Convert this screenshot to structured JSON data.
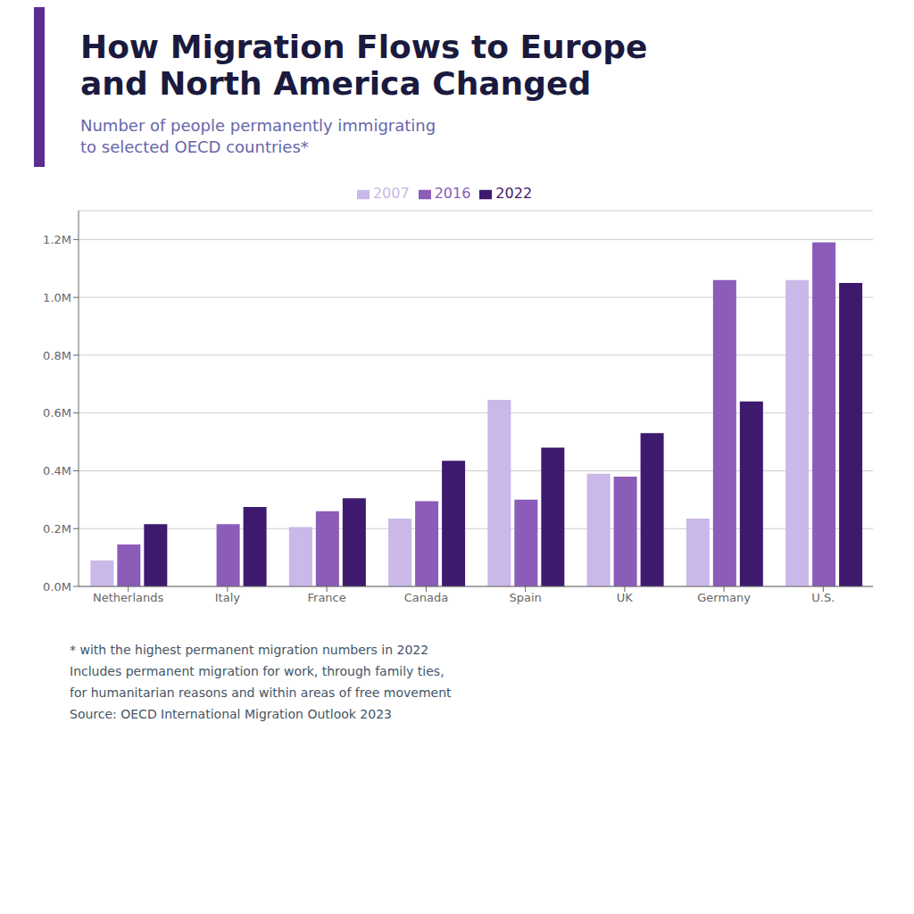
{
  "chart_data": {
    "type": "bar",
    "title": "How Migration Flows to Europe\nand North America Changed",
    "subtitle": "Number of people permanently immigrating\nto selected OECD countries*",
    "categories": [
      "Netherlands",
      "Italy",
      "France",
      "Canada",
      "Spain",
      "UK",
      "Germany",
      "U.S."
    ],
    "series": [
      {
        "name": "2007",
        "color": "#c9b8e8",
        "values": [
          90000,
          0,
          205000,
          235000,
          645000,
          390000,
          235000,
          1060000
        ]
      },
      {
        "name": "2016",
        "color": "#8b5cb8",
        "values": [
          145000,
          215000,
          260000,
          295000,
          300000,
          380000,
          1060000,
          1190000
        ]
      },
      {
        "name": "2022",
        "color": "#3d1a6e",
        "values": [
          215000,
          275000,
          305000,
          435000,
          480000,
          530000,
          640000,
          1050000
        ]
      }
    ],
    "ylim": [
      0,
      1300000
    ],
    "yticks": [
      {
        "value": 0,
        "label": "0.0M"
      },
      {
        "value": 200000,
        "label": "0.2M"
      },
      {
        "value": 400000,
        "label": "0.4M"
      },
      {
        "value": 600000,
        "label": "0.6M"
      },
      {
        "value": 800000,
        "label": "0.8M"
      },
      {
        "value": 1000000,
        "label": "1.0M"
      },
      {
        "value": 1200000,
        "label": "1.2M"
      }
    ],
    "grid": true,
    "legend": "top",
    "annotations": [
      "* with the highest permanent migration numbers in 2022",
      "Includes permanent migration for work, through family ties,",
      "for humanitarian reasons and within areas of free movement",
      "Source: OECD International Migration Outlook 2023"
    ]
  }
}
